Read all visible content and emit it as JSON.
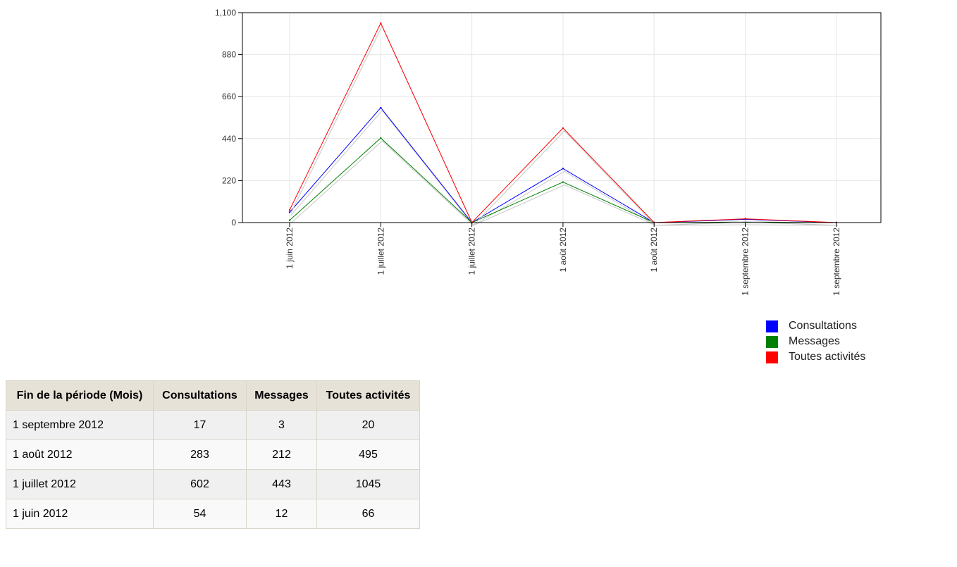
{
  "chart_data": {
    "type": "line",
    "x": [
      "1 juin 2012",
      "1 juillet 2012",
      "1 juillet 2012",
      "1 août 2012",
      "1 août 2012",
      "1 septembre 2012",
      "1 septembre 2012"
    ],
    "series": [
      {
        "name": "Consultations",
        "color": "#0000ff",
        "values": [
          54,
          602,
          0,
          283,
          0,
          17,
          0
        ]
      },
      {
        "name": "Messages",
        "color": "#008000",
        "values": [
          12,
          443,
          0,
          212,
          0,
          3,
          0
        ]
      },
      {
        "name": "Toutes activités",
        "color": "#ff0000",
        "values": [
          66,
          1045,
          0,
          495,
          0,
          20,
          0
        ]
      }
    ],
    "yticks": [
      "0",
      "220",
      "440",
      "660",
      "880",
      "1,100"
    ],
    "ylim": [
      0,
      1100
    ],
    "grid": true,
    "legend": "bottom-right"
  },
  "table": {
    "headers": [
      "Fin de la période (Mois)",
      "Consultations",
      "Messages",
      "Toutes activités"
    ],
    "rows": [
      [
        "1 septembre 2012",
        "17",
        "3",
        "20"
      ],
      [
        "1 août 2012",
        "283",
        "212",
        "495"
      ],
      [
        "1 juillet 2012",
        "602",
        "443",
        "1045"
      ],
      [
        "1 juin 2012",
        "54",
        "12",
        "66"
      ]
    ]
  }
}
